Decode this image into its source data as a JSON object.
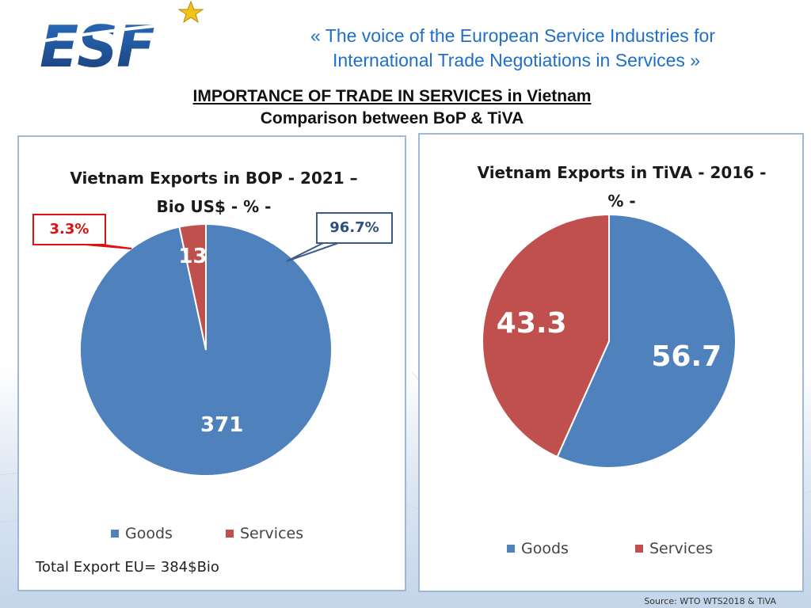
{
  "header": {
    "logo_text": "ESF",
    "tagline_line1": "«  The voice of the European Service Industries for",
    "tagline_line2": "International Trade Negotiations in Services  »",
    "title": "IMPORTANCE OF TRADE IN SERVICES in Vietnam",
    "subtitle": "Comparison between BoP & TiVA"
  },
  "colors": {
    "goods": "#4f81bd",
    "services": "#c0504d",
    "panel_border": "#9eb8d8",
    "brand_blue": "#1f6fc9"
  },
  "chart_data": [
    {
      "type": "pie",
      "title_line1": "Vietnam Exports in BOP - 2021 –",
      "title_line2": "Bio US$ - % -",
      "categories": [
        "Goods",
        "Services"
      ],
      "values": [
        371,
        13
      ],
      "data_labels": [
        "371",
        "13"
      ],
      "callouts": {
        "services": "3.3%",
        "goods": "96.7%"
      },
      "legend": [
        "Goods",
        "Services"
      ],
      "legend_position": "bottom"
    },
    {
      "type": "pie",
      "title_line1": "Vietnam Exports in TiVA - 2016 -",
      "title_line2": "% -",
      "categories": [
        "Goods",
        "Services"
      ],
      "values": [
        56.7,
        43.3
      ],
      "data_labels": [
        "56.7",
        "43.3"
      ],
      "legend": [
        "Goods",
        "Services"
      ],
      "legend_position": "bottom"
    }
  ],
  "footnote": "Total Export EU= 384$Bio",
  "source": "Source: WTO WTS2018 & TiVA"
}
